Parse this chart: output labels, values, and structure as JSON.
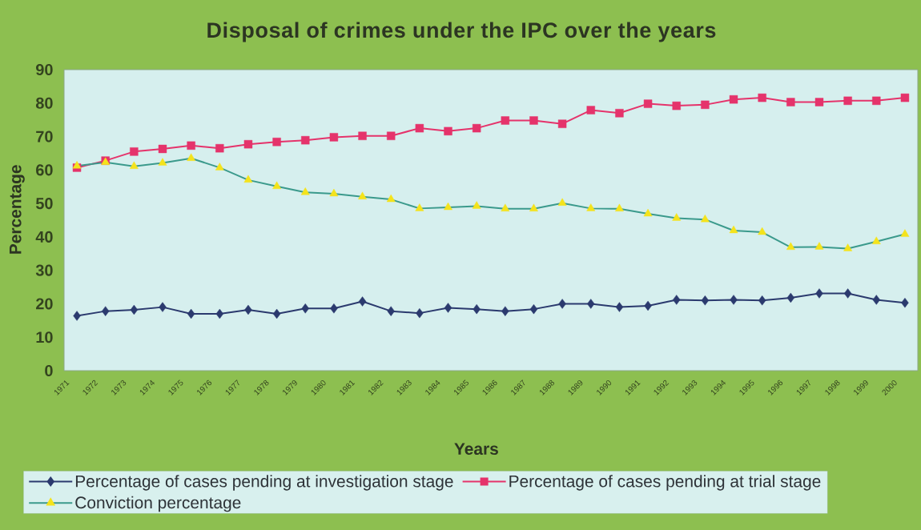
{
  "chart_data": {
    "type": "line",
    "title": "Disposal of crimes under the IPC over the years",
    "xlabel": "Years",
    "ylabel": "Percentage",
    "categories": [
      "1971",
      "1972",
      "1973",
      "1974",
      "1975",
      "1976",
      "1977",
      "1978",
      "1979",
      "1980",
      "1981",
      "1982",
      "1983",
      "1984",
      "1985",
      "1986",
      "1987",
      "1988",
      "1989",
      "1990",
      "1991",
      "1992",
      "1993",
      "1994",
      "1995",
      "1996",
      "1997",
      "1998",
      "1999",
      "2000"
    ],
    "series": [
      {
        "name": "Percentage of cases pending at investigation stage",
        "color": "#2b3a6e",
        "marker": "diamond",
        "values": [
          16.4,
          17.8,
          18.2,
          19.0,
          17.0,
          17.0,
          18.2,
          17.0,
          18.6,
          18.6,
          20.7,
          17.8,
          17.2,
          18.8,
          18.4,
          17.8,
          18.4,
          20.0,
          20.0,
          19.0,
          19.4,
          21.2,
          21.0,
          21.2,
          21.0,
          21.8,
          23.1,
          23.1,
          21.2,
          20.3
        ]
      },
      {
        "name": "Percentage of cases pending at trial stage",
        "color": "#e5336b",
        "marker": "square",
        "values": [
          60.7,
          62.8,
          65.5,
          66.3,
          67.3,
          66.5,
          67.7,
          68.4,
          68.9,
          69.8,
          70.2,
          70.2,
          72.5,
          71.6,
          72.5,
          74.8,
          74.8,
          73.8,
          77.9,
          77.0,
          79.8,
          79.2,
          79.5,
          81.1,
          81.6,
          80.3,
          80.3,
          80.7,
          80.7,
          81.6
        ]
      },
      {
        "name": "Conviction percentage",
        "color": "#3b9a8c",
        "marker": "triangle",
        "colors": [
          "#f4e31c",
          "#f4e31c",
          "#f4e31c",
          "#f4e31c",
          "#f4e31c",
          "#f4e31c",
          "#f4e31c",
          "#f4e31c",
          "#f4e31c",
          "#f4e31c",
          "#f4e31c",
          "#f4e31c",
          "#f4e31c",
          "#f4e31c",
          "#f4e31c",
          "#f4e31c",
          "#f4e31c",
          "#f4e31c",
          "#f4e31c",
          "#f4e31c",
          "#f4e31c",
          "#f4e31c",
          "#f4e31c",
          "#f4e31c",
          "#f4e31c",
          "#f4e31c",
          "#f4e31c",
          "#f4e31c",
          "#f4e31c",
          "#f4e31c"
        ],
        "values": [
          61.2,
          62.3,
          61.1,
          62.1,
          63.5,
          60.7,
          57.0,
          55.1,
          53.3,
          52.9,
          52.0,
          51.2,
          48.5,
          48.8,
          49.2,
          48.4,
          48.4,
          50.1,
          48.5,
          48.4,
          46.9,
          45.6,
          45.2,
          41.9,
          41.4,
          36.9,
          37.0,
          36.5,
          38.6,
          40.8
        ]
      }
    ],
    "ylim": [
      0,
      90
    ],
    "yticks": [
      0,
      10,
      20,
      30,
      40,
      50,
      60,
      70,
      80,
      90
    ],
    "legend": "bottom",
    "line_style": "solid"
  }
}
